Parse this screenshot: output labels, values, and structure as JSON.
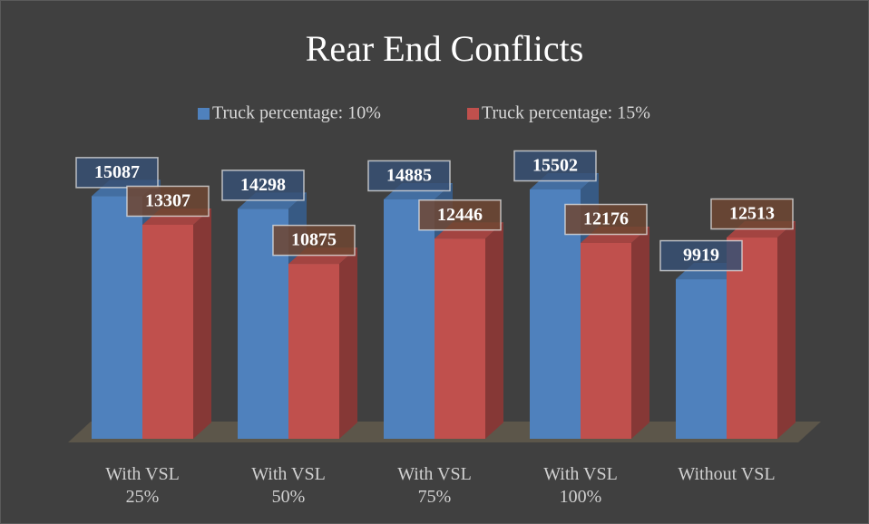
{
  "chart_data": {
    "type": "bar3d",
    "title": "Rear End Conflicts",
    "categories": [
      "With VSL 25%",
      "With VSL 50%",
      "With VSL 75%",
      "With VSL 100%",
      "Without VSL"
    ],
    "series": [
      {
        "name": "Truck percentage: 10%",
        "color": "#4f81bd",
        "values": [
          15087,
          14298,
          14885,
          15502,
          9919
        ]
      },
      {
        "name": "Truck percentage: 15%",
        "color": "#c0504d",
        "values": [
          13307,
          10875,
          12446,
          12176,
          12513
        ]
      }
    ],
    "legend": "top"
  }
}
